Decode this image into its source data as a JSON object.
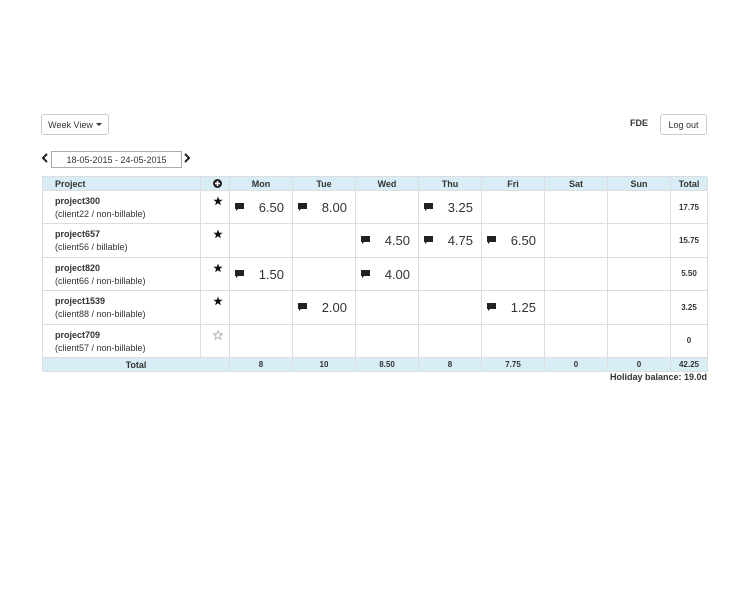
{
  "toolbar": {
    "view_button": "Week View",
    "user": "FDE",
    "logout": "Log out",
    "date_range": "18-05-2015 - 24-05-2015"
  },
  "table": {
    "headers": [
      "Project",
      "Mon",
      "Tue",
      "Wed",
      "Thu",
      "Fri",
      "Sat",
      "Sun",
      "Total"
    ],
    "rows": [
      {
        "project": "project300",
        "client": "(client22 / non-billable)",
        "starred": true,
        "hours": [
          "6.50",
          "8.00",
          null,
          "3.25",
          null,
          null,
          null
        ],
        "total": "17.75"
      },
      {
        "project": "project657",
        "client": "(client56 / billable)",
        "starred": true,
        "hours": [
          null,
          null,
          "4.50",
          "4.75",
          "6.50",
          null,
          null
        ],
        "total": "15.75"
      },
      {
        "project": "project820",
        "client": "(client66 / non-billable)",
        "starred": true,
        "hours": [
          "1.50",
          null,
          "4.00",
          null,
          null,
          null,
          null
        ],
        "total": "5.50"
      },
      {
        "project": "project1539",
        "client": "(client88 / non-billable)",
        "starred": true,
        "hours": [
          null,
          "2.00",
          null,
          null,
          "1.25",
          null,
          null
        ],
        "total": "3.25"
      },
      {
        "project": "project709",
        "client": "(client57 / non-billable)",
        "starred": false,
        "hours": [
          null,
          null,
          null,
          null,
          null,
          null,
          null
        ],
        "total": "0"
      }
    ],
    "footer": {
      "label": "Total",
      "totals": [
        "8",
        "10",
        "8.50",
        "8",
        "7.75",
        "0",
        "0"
      ],
      "grand_total": "42.25"
    }
  },
  "holiday_balance": "Holiday balance: 19.0d"
}
